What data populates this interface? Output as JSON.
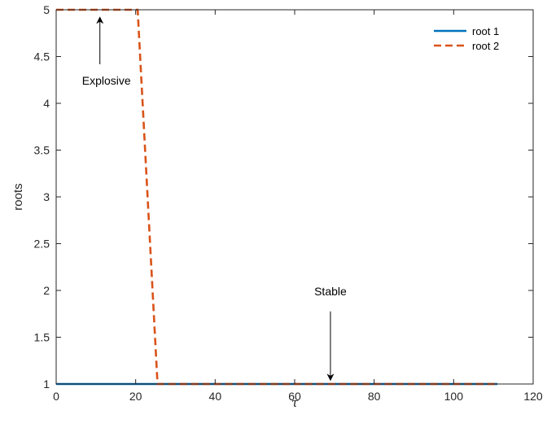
{
  "chart_data": {
    "type": "line",
    "title": "",
    "xlabel": "τ",
    "ylabel": "roots",
    "xlim": [
      0,
      120
    ],
    "ylim": [
      1,
      5
    ],
    "xticks": [
      0,
      20,
      40,
      60,
      80,
      100,
      120
    ],
    "yticks": [
      1,
      1.5,
      2,
      2.5,
      3,
      3.5,
      4,
      4.5,
      5
    ],
    "xtick_labels": [
      "0",
      "20",
      "40",
      "60",
      "80",
      "100",
      "120"
    ],
    "ytick_labels": [
      "1",
      "1.5",
      "2",
      "2.5",
      "3",
      "3.5",
      "4",
      "4.5",
      "5"
    ],
    "grid": false,
    "legend_position": "top-right",
    "series": [
      {
        "name": "root 1",
        "color": "#0072BD",
        "line_style": "solid",
        "x": [
          0,
          111
        ],
        "y": [
          1,
          1
        ]
      },
      {
        "name": "root 2",
        "color": "#D95319",
        "line_style": "dashed",
        "x": [
          0,
          20.5,
          25.5,
          111
        ],
        "y": [
          5,
          5,
          1,
          1
        ]
      }
    ],
    "annotations": [
      {
        "text": "Explosive",
        "point_to": [
          11,
          4.92
        ],
        "text_at": [
          11,
          4.2
        ]
      },
      {
        "text": "Stable",
        "point_to": [
          69,
          1.04
        ],
        "text_at": [
          69,
          1.95
        ]
      }
    ]
  }
}
